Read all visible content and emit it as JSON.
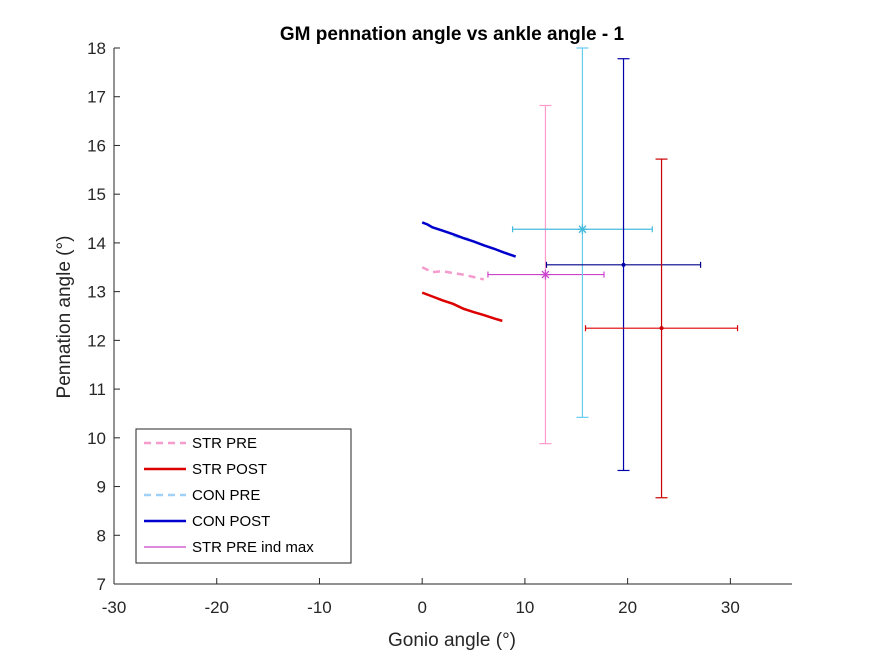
{
  "chart_data": {
    "type": "line",
    "title": "GM pennation angle vs ankle angle - 1",
    "xlabel": "Gonio angle (°)",
    "ylabel": "Pennation angle (°)",
    "xlim": [
      -30,
      36
    ],
    "ylim": [
      7,
      18
    ],
    "xticks": [
      "-30",
      "-20",
      "-10",
      "0",
      "10",
      "20",
      "30"
    ],
    "yticks": [
      "7",
      "8",
      "9",
      "10",
      "11",
      "12",
      "13",
      "14",
      "15",
      "16",
      "17",
      "18"
    ],
    "grid": false,
    "legend_position": "bottom-left",
    "series": [
      {
        "name": "STR PRE",
        "color": "#f59bcd",
        "dash": "dashed",
        "x": [
          0,
          0.5,
          1,
          2,
          3,
          4,
          5,
          6
        ],
        "y": [
          13.5,
          13.45,
          13.4,
          13.42,
          13.38,
          13.35,
          13.3,
          13.25
        ]
      },
      {
        "name": "STR POST",
        "color": "#dd0000",
        "dash": "solid",
        "x": [
          0,
          1,
          2,
          3,
          4,
          5,
          6,
          7,
          7.8
        ],
        "y": [
          12.98,
          12.9,
          12.82,
          12.75,
          12.65,
          12.58,
          12.52,
          12.45,
          12.4
        ]
      },
      {
        "name": "CON PRE",
        "color": "#9fd0f7",
        "dash": "dashed",
        "x": [
          3,
          3.5,
          4,
          4.5
        ],
        "y": [
          14.15,
          14.12,
          14.1,
          14.08
        ]
      },
      {
        "name": "CON POST",
        "color": "#0000cc",
        "dash": "solid",
        "x": [
          0,
          0.5,
          1,
          2,
          3,
          4,
          5,
          6,
          7,
          8,
          9.1
        ],
        "y": [
          14.42,
          14.38,
          14.32,
          14.25,
          14.18,
          14.1,
          14.03,
          13.95,
          13.88,
          13.8,
          13.72
        ]
      },
      {
        "name": "STR PRE ind max",
        "color": "#cc44cc",
        "dash": "solid",
        "x": [],
        "y": []
      }
    ],
    "error_points": [
      {
        "color": "#ff9acb",
        "hcolor": "#cc44cc",
        "marker": "star",
        "x": 12.0,
        "y": 13.35,
        "xerr": [
          6.4,
          17.7
        ],
        "yerr": [
          9.88,
          16.82
        ]
      },
      {
        "color": "#66ccee",
        "hcolor": "#44bbdd",
        "marker": "star",
        "x": 15.6,
        "y": 14.28,
        "xerr": [
          8.8,
          22.4
        ],
        "yerr": [
          10.42,
          18.0
        ]
      },
      {
        "color": "#0000aa",
        "hcolor": "#000088",
        "marker": "dot",
        "x": 19.6,
        "y": 13.55,
        "xerr": [
          12.1,
          27.1
        ],
        "yerr": [
          9.33,
          17.78
        ]
      },
      {
        "color": "#cc0000",
        "hcolor": "#dd0000",
        "marker": "dot",
        "x": 23.3,
        "y": 12.25,
        "xerr": [
          15.9,
          30.7
        ],
        "yerr": [
          8.77,
          15.72
        ]
      }
    ]
  }
}
